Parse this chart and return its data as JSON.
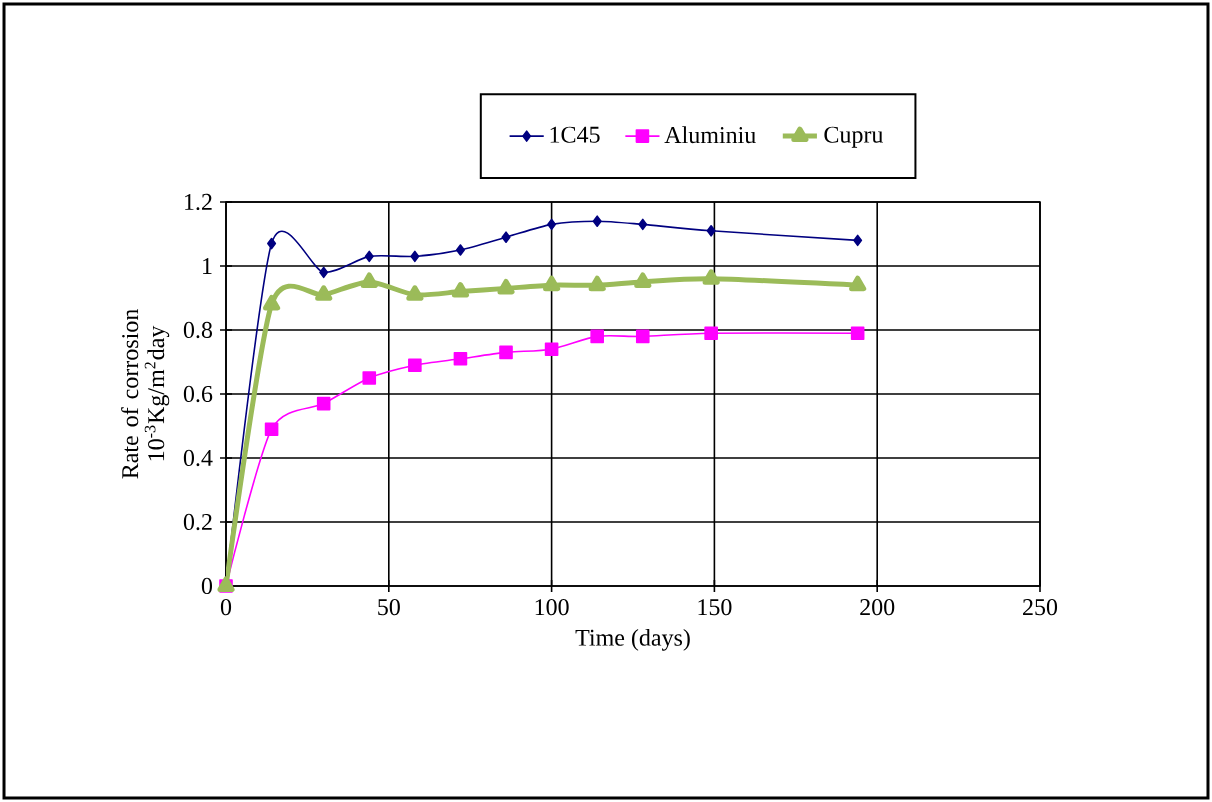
{
  "chart_data": {
    "type": "line",
    "xlabel": "Time (days)",
    "ylabel": "Rate of corrosion 10$^{-3}$Kg/m$^{2}$day",
    "xlim": [
      0,
      250
    ],
    "xticks": [
      0,
      50,
      100,
      150,
      200,
      250
    ],
    "ylim": [
      0,
      1.2
    ],
    "yticks": [
      0,
      0.2,
      0.4,
      0.6,
      0.8,
      1,
      1.2
    ],
    "grid": true,
    "legend": "top",
    "line_style": "solid",
    "x": [
      0,
      14,
      30,
      44,
      58,
      72,
      86,
      100,
      114,
      128,
      149,
      194
    ],
    "series": [
      {
        "name": "1C45",
        "color": "#000080",
        "marker": "diamond",
        "values": [
          0,
          1.07,
          0.98,
          1.03,
          1.03,
          1.05,
          1.09,
          1.13,
          1.14,
          1.13,
          1.11,
          1.08
        ]
      },
      {
        "name": "Aluminiu",
        "color": "#ff00ff",
        "marker": "square",
        "values": [
          0,
          0.49,
          0.57,
          0.65,
          0.69,
          0.71,
          0.73,
          0.74,
          0.78,
          0.78,
          0.79,
          0.79
        ]
      },
      {
        "name": "Cupru",
        "color": "#9bbb59",
        "marker": "triangle",
        "values": [
          0,
          0.88,
          0.91,
          0.95,
          0.91,
          0.92,
          0.93,
          0.94,
          0.94,
          0.95,
          0.96,
          0.94
        ]
      }
    ]
  }
}
